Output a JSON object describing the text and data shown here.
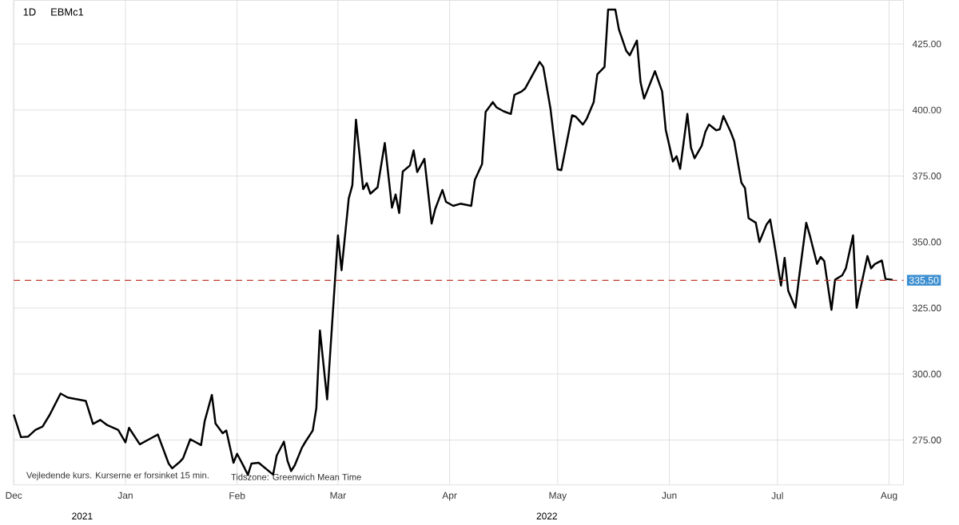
{
  "chart_data": {
    "type": "line",
    "title": "EBMc1",
    "subtitle": "1D",
    "annotations": [
      "Vejledende kurs. Kurserne er forsinket 15 min.",
      "Tidszone: Greenwich Mean Time",
      "2021",
      "2022"
    ],
    "x": [
      "2021-12-01",
      "2021-12-03",
      "2021-12-05",
      "2021-12-07",
      "2021-12-09",
      "2021-12-11",
      "2021-12-14",
      "2021-12-16",
      "2021-12-21",
      "2021-12-23",
      "2021-12-25",
      "2021-12-27",
      "2021-12-30",
      "2022-01-01",
      "2022-01-02",
      "2022-01-05",
      "2022-01-08",
      "2022-01-10",
      "2022-01-13",
      "2022-01-14",
      "2022-01-16",
      "2022-01-17",
      "2022-01-19",
      "2022-01-22",
      "2022-01-23",
      "2022-01-25",
      "2022-01-26",
      "2022-01-28",
      "2022-01-29",
      "2022-01-31",
      "2022-02-01",
      "2022-02-03",
      "2022-02-04",
      "2022-02-05",
      "2022-02-07",
      "2022-02-11",
      "2022-02-12",
      "2022-02-14",
      "2022-02-15",
      "2022-02-16",
      "2022-02-17",
      "2022-02-19",
      "2022-02-20",
      "2022-02-22",
      "2022-02-23",
      "2022-02-24",
      "2022-02-26",
      "2022-03-01",
      "2022-03-02",
      "2022-03-04",
      "2022-03-05",
      "2022-03-06",
      "2022-03-08",
      "2022-03-09",
      "2022-03-10",
      "2022-03-12",
      "2022-03-14",
      "2022-03-16",
      "2022-03-17",
      "2022-03-18",
      "2022-03-19",
      "2022-03-21",
      "2022-03-22",
      "2022-03-23",
      "2022-03-25",
      "2022-03-27",
      "2022-03-28",
      "2022-03-30",
      "2022-03-31",
      "2022-04-02",
      "2022-04-04",
      "2022-04-07",
      "2022-04-08",
      "2022-04-10",
      "2022-04-11",
      "2022-04-13",
      "2022-04-14",
      "2022-04-16",
      "2022-04-18",
      "2022-04-19",
      "2022-04-21",
      "2022-04-22",
      "2022-04-26",
      "2022-04-27",
      "2022-04-29",
      "2022-05-01",
      "2022-05-02",
      "2022-05-05",
      "2022-05-06",
      "2022-05-08",
      "2022-05-09",
      "2022-05-11",
      "2022-05-12",
      "2022-05-14",
      "2022-05-15",
      "2022-05-17",
      "2022-05-18",
      "2022-05-20",
      "2022-05-21",
      "2022-05-23",
      "2022-05-24",
      "2022-05-25",
      "2022-05-28",
      "2022-05-30",
      "2022-05-31",
      "2022-06-02",
      "2022-06-03",
      "2022-06-04",
      "2022-06-06",
      "2022-06-07",
      "2022-06-08",
      "2022-06-10",
      "2022-06-11",
      "2022-06-12",
      "2022-06-14",
      "2022-06-15",
      "2022-06-16",
      "2022-06-18",
      "2022-06-19",
      "2022-06-21",
      "2022-06-22",
      "2022-06-23",
      "2022-06-25",
      "2022-06-26",
      "2022-06-28",
      "2022-06-29",
      "2022-06-30",
      "2022-07-02",
      "2022-07-03",
      "2022-07-04",
      "2022-07-06",
      "2022-07-07",
      "2022-07-09",
      "2022-07-10",
      "2022-07-12",
      "2022-07-13",
      "2022-07-14",
      "2022-07-16",
      "2022-07-17",
      "2022-07-19",
      "2022-07-20",
      "2022-07-22",
      "2022-07-23",
      "2022-07-24",
      "2022-07-26",
      "2022-07-27",
      "2022-07-28",
      "2022-07-30",
      "2022-07-31",
      "2022-08-02"
    ],
    "values": [
      284.6,
      276.1,
      276.3,
      278.8,
      280.1,
      284.6,
      292.6,
      291.1,
      289.8,
      281.1,
      282.6,
      280.6,
      278.8,
      274.1,
      279.6,
      273.4,
      275.6,
      277.1,
      266.1,
      264.3,
      266.6,
      268.1,
      275.3,
      273.1,
      282.1,
      292.1,
      281.3,
      277.6,
      278.6,
      266.4,
      269.8,
      264.6,
      261.8,
      266.1,
      266.4,
      261.9,
      269.1,
      274.4,
      267.1,
      263.3,
      265.4,
      272.1,
      274.4,
      278.6,
      287.1,
      316.5,
      290.4,
      352.5,
      339.3,
      366.5,
      371.5,
      396.3,
      370.0,
      372.3,
      368.3,
      370.7,
      387.5,
      363.0,
      368.0,
      361.0,
      376.7,
      379.0,
      384.7,
      376.5,
      381.5,
      357.0,
      362.5,
      369.7,
      365.2,
      363.7,
      364.5,
      363.7,
      373.5,
      379.5,
      399.3,
      403.0,
      401.0,
      399.5,
      398.5,
      405.7,
      407.0,
      408.2,
      418.2,
      416.3,
      400.5,
      377.5,
      377.2,
      398.0,
      397.5,
      394.5,
      396.5,
      403.0,
      413.5,
      416.3,
      438.0,
      438.0,
      430.5,
      422.5,
      420.7,
      426.3,
      410.5,
      404.3,
      414.7,
      407.0,
      392.5,
      380.5,
      382.5,
      377.7,
      398.5,
      385.7,
      381.7,
      386.5,
      391.7,
      394.5,
      392.3,
      392.7,
      397.7,
      391.8,
      388.2,
      372.5,
      370.4,
      359.0,
      357.3,
      350.0,
      356.7,
      358.5,
      350.5,
      333.5,
      344.0,
      331.5,
      325.1,
      336.5,
      357.3,
      352.5,
      341.7,
      344.3,
      342.8,
      324.3,
      335.7,
      337.4,
      340.0,
      352.5,
      325.1,
      332.0,
      344.7,
      340.0,
      341.6,
      343.0,
      336.0,
      335.7
    ],
    "color": "#000000",
    "xlim": [
      "2021-12-01",
      "2022-08-05"
    ],
    "xticks": [
      {
        "value": "2021-12-01",
        "label": "Dec"
      },
      {
        "value": "2022-01-01",
        "label": "Jan"
      },
      {
        "value": "2022-02-01",
        "label": "Feb"
      },
      {
        "value": "2022-03-01",
        "label": "Mar"
      },
      {
        "value": "2022-04-01",
        "label": "Apr"
      },
      {
        "value": "2022-05-01",
        "label": "May"
      },
      {
        "value": "2022-06-01",
        "label": "Jun"
      },
      {
        "value": "2022-07-01",
        "label": "Jul"
      },
      {
        "value": "2022-08-01",
        "label": "Aug"
      }
    ],
    "ylim": [
      258,
      441.5
    ],
    "yticks": [
      {
        "value": 275,
        "label": "275.00"
      },
      {
        "value": 300,
        "label": "300.00"
      },
      {
        "value": 325,
        "label": "325.00"
      },
      {
        "value": 350,
        "label": "350.00"
      },
      {
        "value": 375,
        "label": "375.00"
      },
      {
        "value": 400,
        "label": "400.00"
      },
      {
        "value": 425,
        "label": "425.00"
      }
    ],
    "grid": true,
    "ref_lines": [
      {
        "axis": "y",
        "value": 335.5,
        "label": "335.50",
        "color": "#c0392b",
        "line_style": "dashed"
      }
    ]
  }
}
